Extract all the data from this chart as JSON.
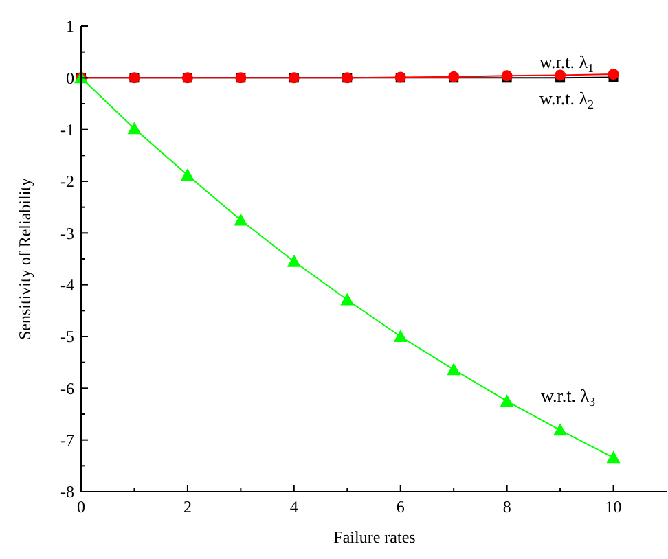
{
  "chart_data": {
    "type": "line",
    "xlabel": "Failure rates",
    "ylabel": "Sensitivity of Reliability",
    "x": [
      0,
      1,
      2,
      3,
      4,
      5,
      6,
      7,
      8,
      9,
      10
    ],
    "series": [
      {
        "name": "w.r.t. λ$_{2}$",
        "color": "#000000",
        "marker": "square",
        "values": [
          0,
          0,
          0,
          0,
          0,
          0,
          0,
          0,
          0,
          0,
          0.01
        ]
      },
      {
        "name": "w.r.t. λ$_{1}$",
        "color": "#ff0000",
        "marker": "circle",
        "values": [
          0,
          0,
          0,
          0,
          0,
          0,
          0.01,
          0.02,
          0.04,
          0.05,
          0.07
        ]
      },
      {
        "name": "w.r.t. λ$_{3}$",
        "color": "#00ff00",
        "marker": "triangle",
        "values": [
          0,
          -0.98,
          -1.88,
          -2.75,
          -3.55,
          -4.29,
          -5.0,
          -5.64,
          -6.25,
          -6.81,
          -7.34
        ]
      }
    ],
    "xlim": [
      0,
      11
    ],
    "ylim": [
      -8,
      1
    ],
    "xticks": [
      0,
      {
        "value": 1,
        "label": null
      },
      2,
      {
        "value": 3,
        "label": null
      },
      4,
      {
        "value": 5,
        "label": null
      },
      6,
      {
        "value": 7,
        "label": null
      },
      8,
      {
        "value": 9,
        "label": null
      },
      10
    ],
    "yticks": [
      -8,
      {
        "value": -7.5,
        "label": null
      },
      -7,
      {
        "value": -6.5,
        "label": null
      },
      -6,
      {
        "value": -5.5,
        "label": null
      },
      -5,
      {
        "value": -4.5,
        "label": null
      },
      -4,
      {
        "value": -3.5,
        "label": null
      },
      -3,
      {
        "value": -2.5,
        "label": null
      },
      -2,
      {
        "value": -1.5,
        "label": null
      },
      -1,
      {
        "value": -0.5,
        "label": null
      },
      0,
      {
        "value": 0.5,
        "label": null
      },
      1
    ],
    "line_style": "solid"
  }
}
